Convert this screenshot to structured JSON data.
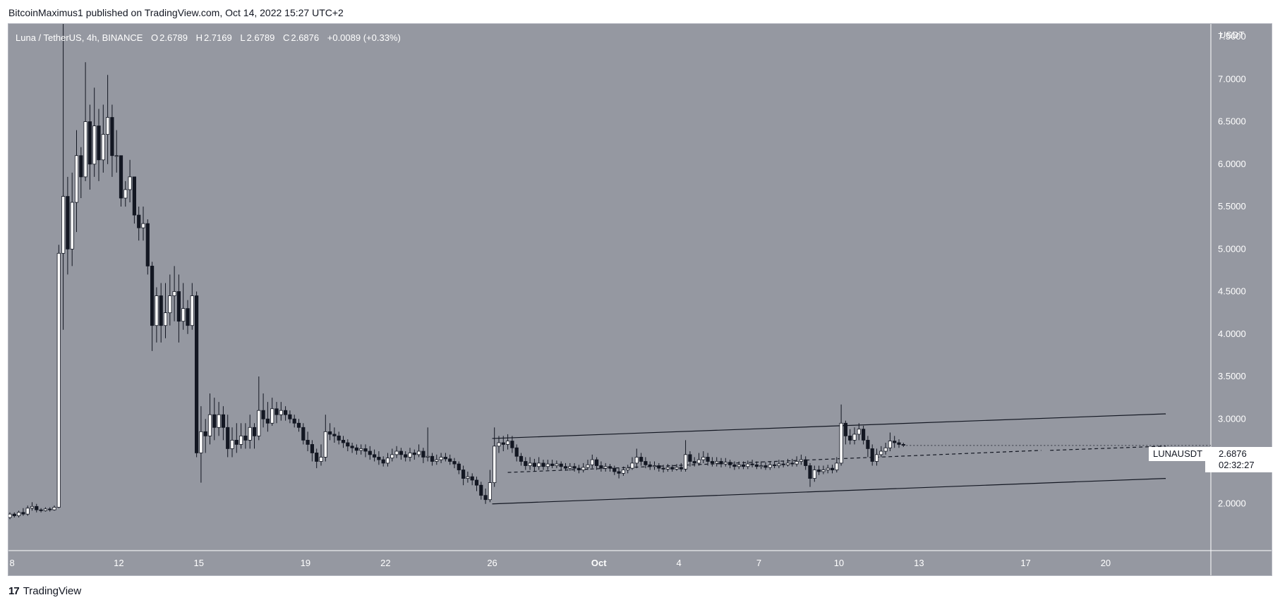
{
  "header": {
    "text": "BitcoinMaximus1 published on TradingView.com, Oct 14, 2022 15:27 UTC+2"
  },
  "legend": {
    "symbol": "Luna / TetherUS, 4h, BINANCE",
    "o_label": "O",
    "o_value": "2.6789",
    "h_label": "H",
    "h_value": "2.7169",
    "l_label": "L",
    "l_value": "2.6789",
    "c_label": "C",
    "c_value": "2.6876",
    "change": "+0.0089 (+0.33%)"
  },
  "price_axis": {
    "unit": "USDT"
  },
  "price_tag": {
    "symbol": "LUNAUSDT",
    "price": "2.6876",
    "countdown": "02:32:27"
  },
  "footer": {
    "logo": "17",
    "brand": "TradingView"
  },
  "colors": {
    "background": "#9598a1",
    "up_candle": "#ffffff",
    "down_candle": "#131722",
    "text": "#ffffff"
  },
  "chart_data": {
    "type": "candlestick",
    "ylim": [
      1.45,
      7.65
    ],
    "y_ticks": [
      "7.5000",
      "7.0000",
      "6.5000",
      "6.0000",
      "5.5000",
      "5.0000",
      "4.5000",
      "4.0000",
      "3.5000",
      "3.0000",
      "2.5000",
      "2.0000"
    ],
    "x_ticks": [
      "8",
      "12",
      "15",
      "19",
      "22",
      "26",
      "Oct",
      "4",
      "7",
      "10",
      "13",
      "17",
      "20"
    ],
    "candles": [
      [
        1.84,
        1.88,
        1.82,
        1.9
      ],
      [
        1.88,
        1.86,
        1.84,
        1.9
      ],
      [
        1.86,
        1.9,
        1.84,
        1.92
      ],
      [
        1.9,
        1.88,
        1.86,
        1.95
      ],
      [
        1.88,
        1.95,
        1.86,
        1.98
      ],
      [
        1.95,
        1.97,
        1.92,
        2.02
      ],
      [
        1.97,
        1.93,
        1.9,
        2.0
      ],
      [
        1.93,
        1.92,
        1.9,
        1.95
      ],
      [
        1.92,
        1.94,
        1.91,
        1.96
      ],
      [
        1.94,
        1.93,
        1.91,
        1.96
      ],
      [
        1.93,
        1.96,
        1.92,
        1.98
      ],
      [
        1.96,
        4.95,
        1.95,
        5.05
      ],
      [
        4.95,
        5.62,
        4.05,
        7.65
      ],
      [
        5.62,
        5.0,
        4.7,
        5.85
      ],
      [
        5.0,
        5.55,
        4.8,
        5.9
      ],
      [
        5.55,
        6.1,
        5.2,
        6.4
      ],
      [
        6.1,
        5.85,
        5.6,
        6.2
      ],
      [
        5.85,
        6.5,
        5.8,
        7.2
      ],
      [
        6.5,
        6.0,
        5.7,
        6.7
      ],
      [
        6.0,
        6.45,
        5.85,
        6.9
      ],
      [
        6.45,
        6.05,
        5.8,
        6.65
      ],
      [
        6.05,
        6.35,
        5.9,
        6.7
      ],
      [
        6.35,
        6.55,
        6.0,
        7.05
      ],
      [
        6.55,
        6.1,
        5.85,
        6.7
      ],
      [
        6.1,
        6.1,
        5.9,
        6.4
      ],
      [
        6.1,
        5.6,
        5.5,
        6.1
      ],
      [
        5.6,
        5.7,
        5.5,
        5.8
      ],
      [
        5.7,
        5.85,
        5.55,
        6.05
      ],
      [
        5.85,
        5.4,
        5.3,
        5.85
      ],
      [
        5.4,
        5.25,
        5.1,
        5.5
      ],
      [
        5.25,
        5.3,
        5.1,
        5.5
      ],
      [
        5.3,
        4.8,
        4.7,
        5.35
      ],
      [
        4.8,
        4.1,
        3.8,
        4.85
      ],
      [
        4.1,
        4.45,
        3.9,
        4.55
      ],
      [
        4.45,
        4.1,
        3.9,
        4.6
      ],
      [
        4.1,
        4.25,
        3.95,
        4.6
      ],
      [
        4.25,
        4.45,
        4.1,
        4.7
      ],
      [
        4.45,
        4.5,
        4.15,
        4.8
      ],
      [
        4.5,
        4.15,
        3.9,
        4.7
      ],
      [
        4.15,
        4.3,
        4.05,
        4.6
      ],
      [
        4.3,
        4.1,
        4.0,
        4.4
      ],
      [
        4.1,
        4.45,
        4.05,
        4.6
      ],
      [
        4.45,
        2.6,
        2.55,
        4.5
      ],
      [
        2.6,
        2.85,
        2.25,
        3.15
      ],
      [
        2.85,
        2.8,
        2.6,
        3.0
      ],
      [
        2.8,
        3.05,
        2.7,
        3.3
      ],
      [
        3.05,
        2.9,
        2.75,
        3.25
      ],
      [
        2.9,
        3.05,
        2.8,
        3.2
      ],
      [
        3.05,
        2.9,
        2.75,
        3.15
      ],
      [
        2.9,
        2.65,
        2.55,
        3.05
      ],
      [
        2.65,
        2.75,
        2.55,
        2.9
      ],
      [
        2.75,
        2.7,
        2.6,
        2.95
      ],
      [
        2.7,
        2.8,
        2.65,
        2.95
      ],
      [
        2.8,
        2.75,
        2.65,
        2.95
      ],
      [
        2.75,
        2.9,
        2.65,
        3.05
      ],
      [
        2.9,
        2.8,
        2.65,
        2.95
      ],
      [
        2.8,
        3.1,
        2.75,
        3.5
      ],
      [
        3.1,
        3.0,
        2.9,
        3.3
      ],
      [
        3.0,
        2.95,
        2.85,
        3.2
      ],
      [
        2.95,
        3.12,
        2.92,
        3.25
      ],
      [
        3.12,
        3.05,
        2.95,
        3.2
      ],
      [
        3.05,
        3.1,
        2.98,
        3.2
      ],
      [
        3.1,
        3.05,
        2.98,
        3.15
      ],
      [
        3.05,
        3.0,
        2.95,
        3.1
      ],
      [
        3.0,
        2.95,
        2.9,
        3.05
      ],
      [
        2.95,
        2.9,
        2.85,
        3.0
      ],
      [
        2.9,
        2.75,
        2.7,
        2.95
      ],
      [
        2.75,
        2.7,
        2.62,
        2.85
      ],
      [
        2.7,
        2.6,
        2.5,
        2.75
      ],
      [
        2.6,
        2.5,
        2.42,
        2.65
      ],
      [
        2.5,
        2.55,
        2.45,
        2.7
      ],
      [
        2.55,
        2.85,
        2.5,
        3.05
      ],
      [
        2.85,
        2.82,
        2.75,
        2.95
      ],
      [
        2.82,
        2.8,
        2.72,
        2.9
      ],
      [
        2.8,
        2.75,
        2.7,
        2.85
      ],
      [
        2.75,
        2.72,
        2.66,
        2.8
      ],
      [
        2.72,
        2.68,
        2.62,
        2.76
      ],
      [
        2.68,
        2.66,
        2.6,
        2.72
      ],
      [
        2.66,
        2.63,
        2.58,
        2.7
      ],
      [
        2.63,
        2.65,
        2.58,
        2.7
      ],
      [
        2.65,
        2.62,
        2.55,
        2.7
      ],
      [
        2.62,
        2.58,
        2.52,
        2.68
      ],
      [
        2.58,
        2.55,
        2.5,
        2.64
      ],
      [
        2.55,
        2.52,
        2.46,
        2.62
      ],
      [
        2.52,
        2.48,
        2.44,
        2.56
      ],
      [
        2.48,
        2.54,
        2.44,
        2.6
      ],
      [
        2.54,
        2.58,
        2.5,
        2.65
      ],
      [
        2.58,
        2.62,
        2.54,
        2.68
      ],
      [
        2.62,
        2.58,
        2.52,
        2.66
      ],
      [
        2.58,
        2.55,
        2.5,
        2.62
      ],
      [
        2.55,
        2.6,
        2.5,
        2.66
      ],
      [
        2.6,
        2.58,
        2.52,
        2.64
      ],
      [
        2.58,
        2.62,
        2.55,
        2.7
      ],
      [
        2.62,
        2.55,
        2.48,
        2.66
      ],
      [
        2.55,
        2.56,
        2.5,
        2.9
      ],
      [
        2.56,
        2.5,
        2.45,
        2.6
      ],
      [
        2.5,
        2.52,
        2.46,
        2.58
      ],
      [
        2.52,
        2.55,
        2.48,
        2.6
      ],
      [
        2.55,
        2.53,
        2.5,
        2.6
      ],
      [
        2.53,
        2.5,
        2.46,
        2.58
      ],
      [
        2.5,
        2.47,
        2.42,
        2.54
      ],
      [
        2.47,
        2.4,
        2.35,
        2.5
      ],
      [
        2.4,
        2.3,
        2.22,
        2.45
      ],
      [
        2.3,
        2.32,
        2.25,
        2.38
      ],
      [
        2.32,
        2.28,
        2.22,
        2.36
      ],
      [
        2.28,
        2.22,
        2.15,
        2.32
      ],
      [
        2.22,
        2.1,
        2.05,
        2.26
      ],
      [
        2.1,
        2.05,
        2.0,
        2.18
      ],
      [
        2.05,
        2.25,
        2.02,
        2.4
      ],
      [
        2.25,
        2.68,
        2.2,
        2.9
      ],
      [
        2.68,
        2.72,
        2.6,
        2.8
      ],
      [
        2.72,
        2.7,
        2.62,
        2.8
      ],
      [
        2.7,
        2.74,
        2.64,
        2.82
      ],
      [
        2.74,
        2.66,
        2.6,
        2.8
      ],
      [
        2.66,
        2.56,
        2.5,
        2.7
      ],
      [
        2.56,
        2.5,
        2.45,
        2.6
      ],
      [
        2.5,
        2.45,
        2.4,
        2.55
      ],
      [
        2.45,
        2.48,
        2.4,
        2.55
      ],
      [
        2.48,
        2.44,
        2.38,
        2.53
      ],
      [
        2.44,
        2.48,
        2.4,
        2.55
      ],
      [
        2.48,
        2.44,
        2.4,
        2.52
      ],
      [
        2.44,
        2.47,
        2.4,
        2.52
      ],
      [
        2.47,
        2.45,
        2.42,
        2.52
      ],
      [
        2.45,
        2.47,
        2.42,
        2.51
      ],
      [
        2.47,
        2.44,
        2.4,
        2.5
      ],
      [
        2.44,
        2.42,
        2.39,
        2.48
      ],
      [
        2.42,
        2.44,
        2.39,
        2.48
      ],
      [
        2.44,
        2.42,
        2.38,
        2.48
      ],
      [
        2.42,
        2.4,
        2.36,
        2.46
      ],
      [
        2.4,
        2.43,
        2.37,
        2.48
      ],
      [
        2.43,
        2.46,
        2.4,
        2.52
      ],
      [
        2.46,
        2.52,
        2.42,
        2.58
      ],
      [
        2.52,
        2.45,
        2.4,
        2.55
      ],
      [
        2.45,
        2.42,
        2.38,
        2.5
      ],
      [
        2.42,
        2.44,
        2.38,
        2.48
      ],
      [
        2.44,
        2.42,
        2.38,
        2.47
      ],
      [
        2.42,
        2.38,
        2.34,
        2.45
      ],
      [
        2.38,
        2.36,
        2.3,
        2.42
      ],
      [
        2.36,
        2.4,
        2.33,
        2.44
      ],
      [
        2.4,
        2.42,
        2.36,
        2.46
      ],
      [
        2.42,
        2.48,
        2.4,
        2.55
      ],
      [
        2.48,
        2.55,
        2.42,
        2.65
      ],
      [
        2.55,
        2.5,
        2.45,
        2.6
      ],
      [
        2.5,
        2.46,
        2.42,
        2.55
      ],
      [
        2.46,
        2.44,
        2.4,
        2.5
      ],
      [
        2.44,
        2.45,
        2.4,
        2.5
      ],
      [
        2.45,
        2.42,
        2.38,
        2.48
      ],
      [
        2.42,
        2.41,
        2.37,
        2.46
      ],
      [
        2.41,
        2.43,
        2.38,
        2.47
      ],
      [
        2.43,
        2.41,
        2.38,
        2.46
      ],
      [
        2.41,
        2.43,
        2.39,
        2.47
      ],
      [
        2.43,
        2.41,
        2.38,
        2.48
      ],
      [
        2.41,
        2.58,
        2.38,
        2.75
      ],
      [
        2.58,
        2.5,
        2.44,
        2.62
      ],
      [
        2.5,
        2.48,
        2.44,
        2.55
      ],
      [
        2.48,
        2.52,
        2.45,
        2.6
      ],
      [
        2.52,
        2.55,
        2.48,
        2.62
      ],
      [
        2.55,
        2.5,
        2.45,
        2.6
      ],
      [
        2.5,
        2.48,
        2.44,
        2.55
      ],
      [
        2.48,
        2.5,
        2.44,
        2.55
      ],
      [
        2.5,
        2.47,
        2.43,
        2.54
      ],
      [
        2.47,
        2.49,
        2.44,
        2.54
      ],
      [
        2.49,
        2.46,
        2.42,
        2.52
      ],
      [
        2.46,
        2.44,
        2.4,
        2.5
      ],
      [
        2.44,
        2.46,
        2.41,
        2.5
      ],
      [
        2.46,
        2.44,
        2.41,
        2.5
      ],
      [
        2.44,
        2.47,
        2.41,
        2.51
      ],
      [
        2.47,
        2.46,
        2.43,
        2.52
      ],
      [
        2.46,
        2.44,
        2.41,
        2.5
      ],
      [
        2.44,
        2.45,
        2.41,
        2.5
      ],
      [
        2.45,
        2.43,
        2.4,
        2.49
      ],
      [
        2.43,
        2.46,
        2.4,
        2.5
      ],
      [
        2.46,
        2.45,
        2.42,
        2.5
      ],
      [
        2.45,
        2.47,
        2.42,
        2.52
      ],
      [
        2.47,
        2.46,
        2.43,
        2.51
      ],
      [
        2.46,
        2.48,
        2.44,
        2.53
      ],
      [
        2.48,
        2.47,
        2.44,
        2.53
      ],
      [
        2.47,
        2.5,
        2.44,
        2.56
      ],
      [
        2.5,
        2.52,
        2.46,
        2.58
      ],
      [
        2.52,
        2.45,
        2.4,
        2.56
      ],
      [
        2.45,
        2.3,
        2.2,
        2.48
      ],
      [
        2.3,
        2.4,
        2.26,
        2.45
      ],
      [
        2.4,
        2.38,
        2.34,
        2.45
      ],
      [
        2.38,
        2.4,
        2.35,
        2.45
      ],
      [
        2.4,
        2.42,
        2.36,
        2.46
      ],
      [
        2.42,
        2.4,
        2.36,
        2.46
      ],
      [
        2.4,
        2.48,
        2.37,
        2.55
      ],
      [
        2.48,
        2.95,
        2.45,
        3.17
      ],
      [
        2.95,
        2.8,
        2.7,
        2.98
      ],
      [
        2.8,
        2.75,
        2.7,
        2.88
      ],
      [
        2.75,
        2.82,
        2.7,
        2.9
      ],
      [
        2.82,
        2.88,
        2.75,
        2.95
      ],
      [
        2.88,
        2.75,
        2.7,
        2.92
      ],
      [
        2.75,
        2.65,
        2.55,
        2.8
      ],
      [
        2.65,
        2.5,
        2.45,
        2.7
      ],
      [
        2.5,
        2.58,
        2.45,
        2.65
      ],
      [
        2.58,
        2.62,
        2.55,
        2.68
      ],
      [
        2.62,
        2.66,
        2.58,
        2.72
      ],
      [
        2.66,
        2.74,
        2.62,
        2.84
      ],
      [
        2.74,
        2.72,
        2.66,
        2.8
      ],
      [
        2.72,
        2.7,
        2.66,
        2.76
      ],
      [
        2.7,
        2.69,
        2.67,
        2.72
      ]
    ],
    "x_tick_indices": [
      0.5,
      24.5,
      42.5,
      66.5,
      84.5,
      108.5,
      132.5,
      150.5,
      168.5,
      186.5,
      204.5,
      228.5,
      246.5
    ],
    "trend_lines": [
      {
        "name": "channel-upper",
        "from": [
          108.5,
          2.77
        ],
        "to": [
          260,
          3.06
        ],
        "style": "solid"
      },
      {
        "name": "channel-lower",
        "from": [
          108.5,
          2.0
        ],
        "to": [
          260,
          2.3
        ],
        "style": "solid"
      },
      {
        "name": "channel-mid",
        "from": [
          112,
          2.37
        ],
        "to": [
          232,
          2.63
        ],
        "style": "dashed"
      },
      {
        "name": "channel-mid-ext",
        "from": [
          234,
          2.63
        ],
        "to": [
          260,
          2.68
        ],
        "style": "dashed"
      }
    ]
  }
}
